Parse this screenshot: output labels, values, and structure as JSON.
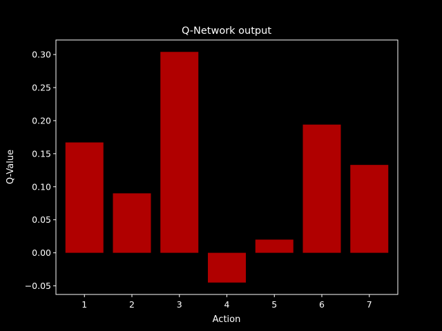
{
  "chart_data": {
    "type": "bar",
    "title": "Q-Network output",
    "xlabel": "Action",
    "ylabel": "Q-Value",
    "categories": [
      "1",
      "2",
      "3",
      "4",
      "5",
      "6",
      "7"
    ],
    "values": [
      0.167,
      0.09,
      0.304,
      -0.045,
      0.02,
      0.194,
      0.133
    ],
    "ylim": [
      -0.063,
      0.322
    ],
    "yticks": [
      "−0.05",
      "0.00",
      "0.05",
      "0.10",
      "0.15",
      "0.20",
      "0.25",
      "0.30"
    ],
    "bar_color": "#b00000",
    "background_color": "#000000",
    "axis_color": "#ffffff",
    "grid": false,
    "legend": "none"
  }
}
